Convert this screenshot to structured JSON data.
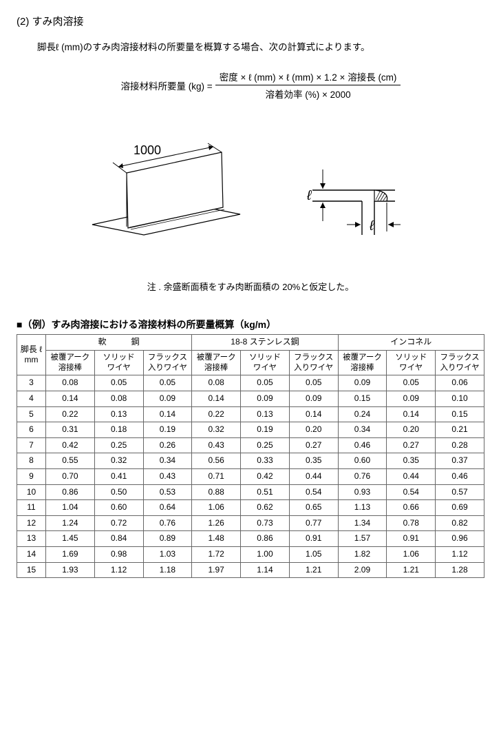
{
  "section_title": "(2) すみ肉溶接",
  "intro": "脚長ℓ (mm)のすみ肉溶接材料の所要量を概算する場合、次の計算式によります。",
  "formula": {
    "lhs": "溶接材料所要量 (kg) = ",
    "numerator": "密度 × ℓ (mm) × ℓ (mm) × 1.2 × 溶接長 (cm)",
    "denominator": "溶着効率 (%) × 2000"
  },
  "figure": {
    "length_label": "1000",
    "l_label": "ℓ"
  },
  "note": "注 . 余盛断面積をすみ肉断面積の 20%と仮定した。",
  "example_title": "■（例）すみ肉溶接における溶接材料の所要量概算（kg/m）",
  "table": {
    "row_header_line1": "脚長 ℓ",
    "row_header_line2": "mm",
    "groups": [
      "軟　　　鋼",
      "18-8 ステンレス鋼",
      "インコネル"
    ],
    "subcolumns": [
      "被覆アーク\n溶接棒",
      "ソリッド\nワイヤ",
      "フラックス\n入りワイヤ"
    ],
    "rows": [
      {
        "l": "3",
        "v": [
          "0.08",
          "0.05",
          "0.05",
          "0.08",
          "0.05",
          "0.05",
          "0.09",
          "0.05",
          "0.06"
        ]
      },
      {
        "l": "4",
        "v": [
          "0.14",
          "0.08",
          "0.09",
          "0.14",
          "0.09",
          "0.09",
          "0.15",
          "0.09",
          "0.10"
        ]
      },
      {
        "l": "5",
        "v": [
          "0.22",
          "0.13",
          "0.14",
          "0.22",
          "0.13",
          "0.14",
          "0.24",
          "0.14",
          "0.15"
        ]
      },
      {
        "l": "6",
        "v": [
          "0.31",
          "0.18",
          "0.19",
          "0.32",
          "0.19",
          "0.20",
          "0.34",
          "0.20",
          "0.21"
        ]
      },
      {
        "l": "7",
        "v": [
          "0.42",
          "0.25",
          "0.26",
          "0.43",
          "0.25",
          "0.27",
          "0.46",
          "0.27",
          "0.28"
        ]
      },
      {
        "l": "8",
        "v": [
          "0.55",
          "0.32",
          "0.34",
          "0.56",
          "0.33",
          "0.35",
          "0.60",
          "0.35",
          "0.37"
        ]
      },
      {
        "l": "9",
        "v": [
          "0.70",
          "0.41",
          "0.43",
          "0.71",
          "0.42",
          "0.44",
          "0.76",
          "0.44",
          "0.46"
        ]
      },
      {
        "l": "10",
        "v": [
          "0.86",
          "0.50",
          "0.53",
          "0.88",
          "0.51",
          "0.54",
          "0.93",
          "0.54",
          "0.57"
        ]
      },
      {
        "l": "11",
        "v": [
          "1.04",
          "0.60",
          "0.64",
          "1.06",
          "0.62",
          "0.65",
          "1.13",
          "0.66",
          "0.69"
        ]
      },
      {
        "l": "12",
        "v": [
          "1.24",
          "0.72",
          "0.76",
          "1.26",
          "0.73",
          "0.77",
          "1.34",
          "0.78",
          "0.82"
        ]
      },
      {
        "l": "13",
        "v": [
          "1.45",
          "0.84",
          "0.89",
          "1.48",
          "0.86",
          "0.91",
          "1.57",
          "0.91",
          "0.96"
        ]
      },
      {
        "l": "14",
        "v": [
          "1.69",
          "0.98",
          "1.03",
          "1.72",
          "1.00",
          "1.05",
          "1.82",
          "1.06",
          "1.12"
        ]
      },
      {
        "l": "15",
        "v": [
          "1.93",
          "1.12",
          "1.18",
          "1.97",
          "1.14",
          "1.21",
          "2.09",
          "1.21",
          "1.28"
        ]
      }
    ]
  }
}
